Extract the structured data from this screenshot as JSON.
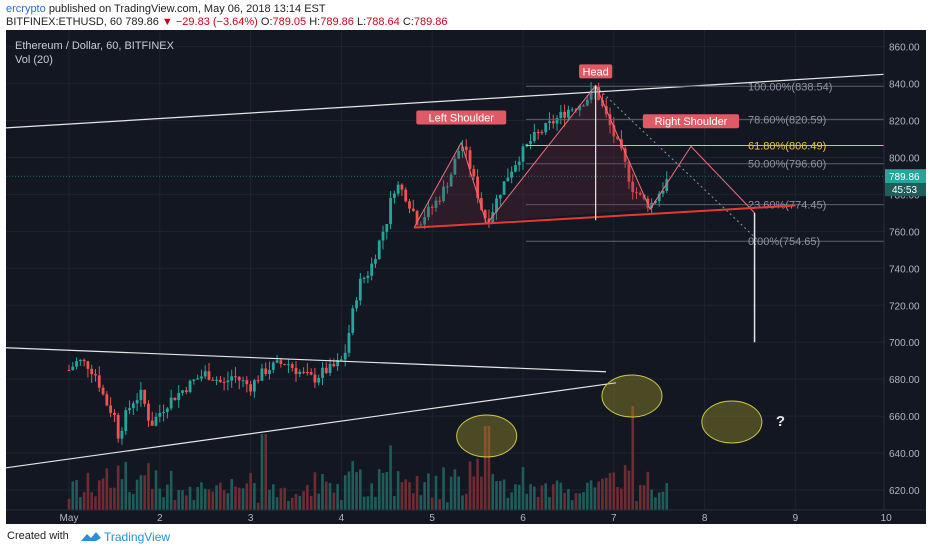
{
  "header": {
    "author": "ercrypto",
    "published": "published on TradingView.com, May 06, 2018 13:14 EST",
    "ticker": "BITFINEX:ETHUSD, 60",
    "last": "789.86",
    "change": "−29.83 (−3.64%)",
    "o_label": "O:",
    "o_value": "789.05",
    "h_label": "H:",
    "h_value": "789.86",
    "l_label": "L:",
    "l_value": "788.64",
    "c_label": "C:",
    "c_value": "789.86"
  },
  "legend": {
    "symbol_title": "Ethereum / Dollar, 60, BITFINEX",
    "volume_label": "Vol (20)"
  },
  "footer": {
    "created_with": "Created with",
    "brand": "TradingView"
  },
  "colors": {
    "background": "#131722",
    "up": "#26a69a",
    "down": "#ef5350",
    "fib_618": "#e3c33c",
    "fib_other": "#8f949e",
    "neckline": "#e53935",
    "pattern": "#f06d7e",
    "circle": "#c9c842",
    "label_bg": "#e05a66"
  },
  "chart_data": {
    "type": "candlestick",
    "x_tick_labels": [
      "May",
      "2",
      "3",
      "4",
      "5",
      "6",
      "7",
      "8",
      "9",
      "10"
    ],
    "y_tick_labels": [
      "620.00",
      "640.00",
      "660.00",
      "680.00",
      "700.00",
      "720.00",
      "740.00",
      "760.00",
      "780.00",
      "800.00",
      "820.00",
      "840.00",
      "860.00"
    ],
    "ylim": [
      607,
      869
    ],
    "price_label": "789.86",
    "countdown_label": "45:53",
    "fib_levels": [
      {
        "label": "100.00%(838.54)",
        "value": 838.54
      },
      {
        "label": "78.60%(820.59)",
        "value": 820.59
      },
      {
        "label": "61.80%(806.49)",
        "value": 806.49
      },
      {
        "label": "50.00%(796.60)",
        "value": 796.6
      },
      {
        "label": "23.60%(774.45)",
        "value": 774.45
      },
      {
        "label": "0.00%(754.65)",
        "value": 754.65
      }
    ],
    "annotations": [
      "Left Shoulder",
      "Head",
      "Right Shoulder",
      "?"
    ],
    "price_path": [
      [
        0.0,
        685
      ],
      [
        0.1,
        690
      ],
      [
        0.2,
        688
      ],
      [
        0.3,
        682
      ],
      [
        0.4,
        668
      ],
      [
        0.5,
        660
      ],
      [
        0.55,
        648
      ],
      [
        0.6,
        658
      ],
      [
        0.7,
        668
      ],
      [
        0.8,
        672
      ],
      [
        0.9,
        655
      ],
      [
        1.0,
        662
      ],
      [
        1.1,
        668
      ],
      [
        1.2,
        672
      ],
      [
        1.3,
        676
      ],
      [
        1.4,
        680
      ],
      [
        1.5,
        683
      ],
      [
        1.6,
        681
      ],
      [
        1.7,
        677
      ],
      [
        1.8,
        682
      ],
      [
        1.9,
        679
      ],
      [
        2.0,
        676
      ],
      [
        2.1,
        682
      ],
      [
        2.2,
        686
      ],
      [
        2.3,
        688
      ],
      [
        2.4,
        689
      ],
      [
        2.5,
        685
      ],
      [
        2.6,
        682
      ],
      [
        2.7,
        680
      ],
      [
        2.8,
        684
      ],
      [
        2.9,
        686
      ],
      [
        3.0,
        690
      ],
      [
        3.05,
        696
      ],
      [
        3.1,
        710
      ],
      [
        3.15,
        722
      ],
      [
        3.2,
        732
      ],
      [
        3.3,
        738
      ],
      [
        3.35,
        744
      ],
      [
        3.4,
        752
      ],
      [
        3.5,
        766
      ],
      [
        3.55,
        778
      ],
      [
        3.6,
        786
      ],
      [
        3.7,
        780
      ],
      [
        3.8,
        770
      ],
      [
        3.85,
        764
      ],
      [
        3.9,
        768
      ],
      [
        4.0,
        773
      ],
      [
        4.1,
        780
      ],
      [
        4.2,
        790
      ],
      [
        4.25,
        798
      ],
      [
        4.3,
        805
      ],
      [
        4.32,
        808
      ],
      [
        4.4,
        798
      ],
      [
        4.5,
        780
      ],
      [
        4.55,
        771
      ],
      [
        4.6,
        766
      ],
      [
        4.65,
        770
      ],
      [
        4.75,
        782
      ],
      [
        4.85,
        792
      ],
      [
        4.95,
        800
      ],
      [
        5.1,
        810
      ],
      [
        5.2,
        814
      ],
      [
        5.3,
        818
      ],
      [
        5.4,
        822
      ],
      [
        5.5,
        826
      ],
      [
        5.6,
        828
      ],
      [
        5.7,
        832
      ],
      [
        5.75,
        834
      ],
      [
        5.8,
        838
      ],
      [
        5.85,
        830
      ],
      [
        5.95,
        818
      ],
      [
        6.1,
        800
      ],
      [
        6.2,
        784
      ],
      [
        6.3,
        778
      ],
      [
        6.35,
        776
      ],
      [
        6.4,
        774
      ],
      [
        6.45,
        777
      ],
      [
        6.5,
        781
      ],
      [
        6.55,
        784
      ],
      [
        6.58,
        787
      ],
      [
        6.62,
        789.86
      ]
    ]
  }
}
